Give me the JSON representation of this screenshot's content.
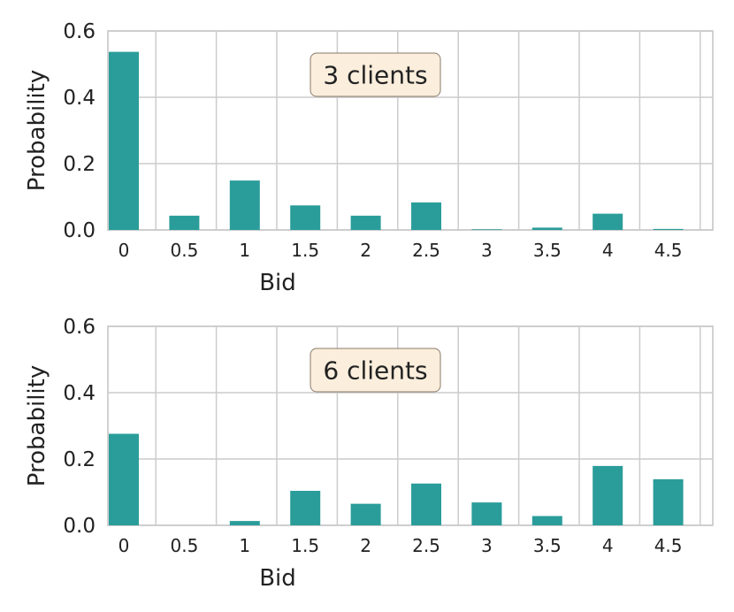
{
  "chart_data": [
    {
      "type": "bar",
      "annotation": "3 clients",
      "xlabel": "Bid",
      "ylabel": "Probability",
      "ylim": [
        0,
        0.6
      ],
      "yticks": [
        "0.0",
        "0.2",
        "0.4",
        "0.6"
      ],
      "categories": [
        "0",
        "0.5",
        "1",
        "1.5",
        "2",
        "2.5",
        "3",
        "3.5",
        "4",
        "4.5"
      ],
      "values": [
        0.537,
        0.043,
        0.149,
        0.074,
        0.043,
        0.083,
        0.002,
        0.007,
        0.049,
        0.003
      ],
      "grid": true
    },
    {
      "type": "bar",
      "annotation": "6 clients",
      "xlabel": "Bid",
      "ylabel": "Probability",
      "ylim": [
        0,
        0.6
      ],
      "yticks": [
        "0.0",
        "0.2",
        "0.4",
        "0.6"
      ],
      "categories": [
        "0",
        "0.5",
        "1",
        "1.5",
        "2",
        "2.5",
        "3",
        "3.5",
        "4",
        "4.5"
      ],
      "values": [
        0.276,
        0.0,
        0.013,
        0.104,
        0.065,
        0.126,
        0.069,
        0.028,
        0.179,
        0.139
      ],
      "grid": true
    }
  ],
  "colors": {
    "bar": "#2a9d9a",
    "grid": "#cccccc",
    "annotation_fill": "#fbeedc",
    "annotation_border": "#8a7a6a"
  }
}
